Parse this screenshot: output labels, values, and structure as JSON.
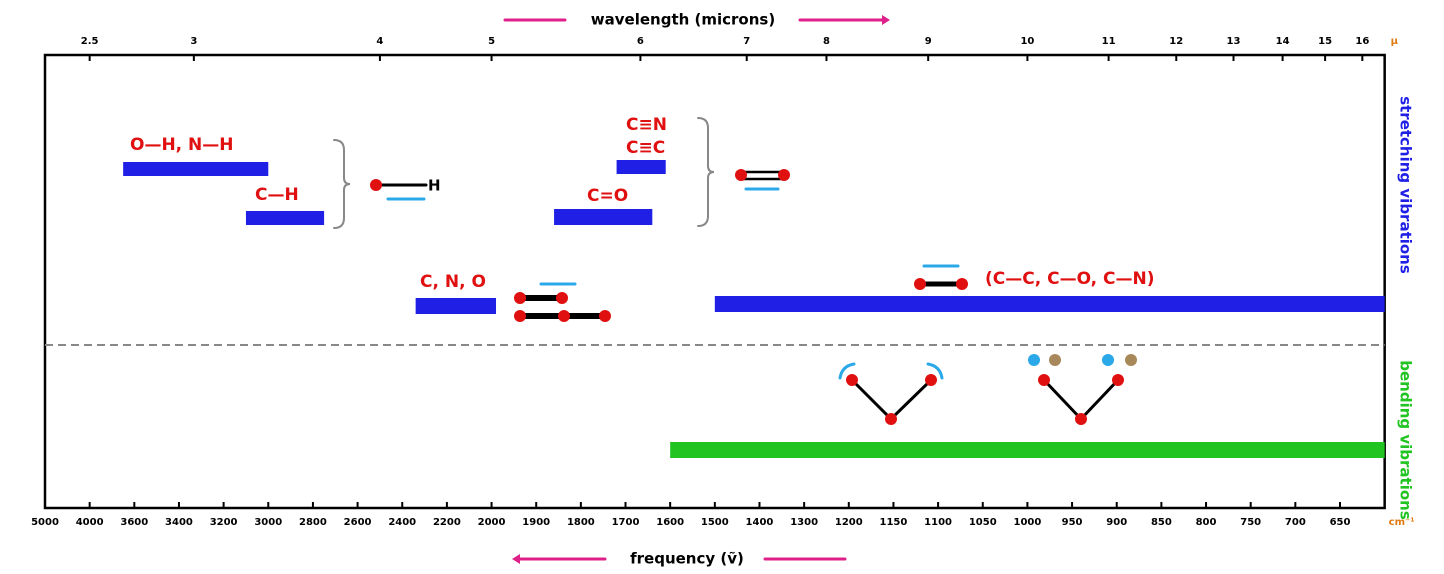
{
  "chart_data": {
    "type": "range-bar",
    "top_label": "wavelength (microns)",
    "top_unit": "µ",
    "x_label": "frequency (ṽ)",
    "x_unit": "cm⁻¹",
    "xlim": [
      5000,
      600
    ],
    "xticks": [
      5000,
      4000,
      3600,
      3400,
      3200,
      3000,
      2800,
      2600,
      2400,
      2200,
      2000,
      1900,
      1800,
      1700,
      1600,
      1500,
      1400,
      1300,
      1200,
      1150,
      1100,
      1050,
      1000,
      950,
      900,
      850,
      800,
      750,
      700,
      650
    ],
    "top_ticks": [
      2.5,
      3,
      4,
      5,
      6,
      7,
      8,
      9,
      10,
      11,
      12,
      13,
      14,
      15,
      16
    ],
    "groups": [
      {
        "name": "stretching vibrations",
        "color": "#1f1fe6"
      },
      {
        "name": "bending vibrations",
        "color": "#22c422"
      }
    ],
    "bands": [
      {
        "labels": [
          "O—H, N—H"
        ],
        "range": [
          3700,
          3000
        ],
        "color": "#1f1fe6"
      },
      {
        "labels": [
          "C—H"
        ],
        "range": [
          3100,
          2750
        ],
        "color": "#1f1fe6"
      },
      {
        "labels": [
          "C≡N",
          "C≡C"
        ],
        "range": [
          1720,
          1610
        ],
        "color": "#1f1fe6"
      },
      {
        "labels": [
          "C=O"
        ],
        "range": [
          1860,
          1640
        ],
        "color": "#1f1fe6"
      },
      {
        "labels": [
          "C, N, O"
        ],
        "range": [
          2340,
          1990
        ],
        "color": "#1f1fe6"
      },
      {
        "labels": [
          "(C—C, C—O, C—N)"
        ],
        "range": [
          1500,
          600
        ],
        "color": "#1f1fe6"
      },
      {
        "labels": [],
        "range": [
          1600,
          600
        ],
        "color": "#22c422"
      }
    ]
  }
}
